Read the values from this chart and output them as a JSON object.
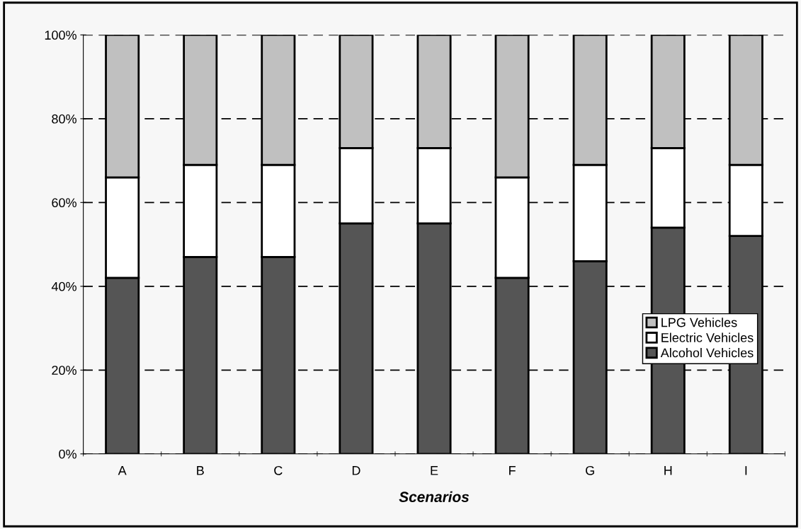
{
  "chart_data": {
    "type": "bar",
    "stacked": true,
    "xlabel": "Scenarios",
    "categories": [
      "A",
      "B",
      "C",
      "D",
      "E",
      "F",
      "G",
      "H",
      "I"
    ],
    "series": [
      {
        "name": "Alcohol Vehicles",
        "color": "#555555",
        "values": [
          42,
          47,
          47,
          55,
          55,
          42,
          46,
          54,
          52
        ]
      },
      {
        "name": "Electric Vehicles",
        "color": "#ffffff",
        "values": [
          24,
          22,
          22,
          18,
          18,
          24,
          23,
          19,
          17
        ]
      },
      {
        "name": "LPG Vehicles",
        "color": "#c0c0c0",
        "values": [
          34,
          31,
          31,
          27,
          27,
          34,
          31,
          27,
          31
        ]
      }
    ],
    "ylim": [
      0,
      100
    ],
    "yticks": [
      {
        "value": 0,
        "label": "0%"
      },
      {
        "value": 20,
        "label": "20%"
      },
      {
        "value": 40,
        "label": "40%"
      },
      {
        "value": 60,
        "label": "60%"
      },
      {
        "value": 80,
        "label": "80%"
      },
      {
        "value": 100,
        "label": "100%"
      }
    ],
    "grid": "y",
    "legend": "lower right"
  }
}
